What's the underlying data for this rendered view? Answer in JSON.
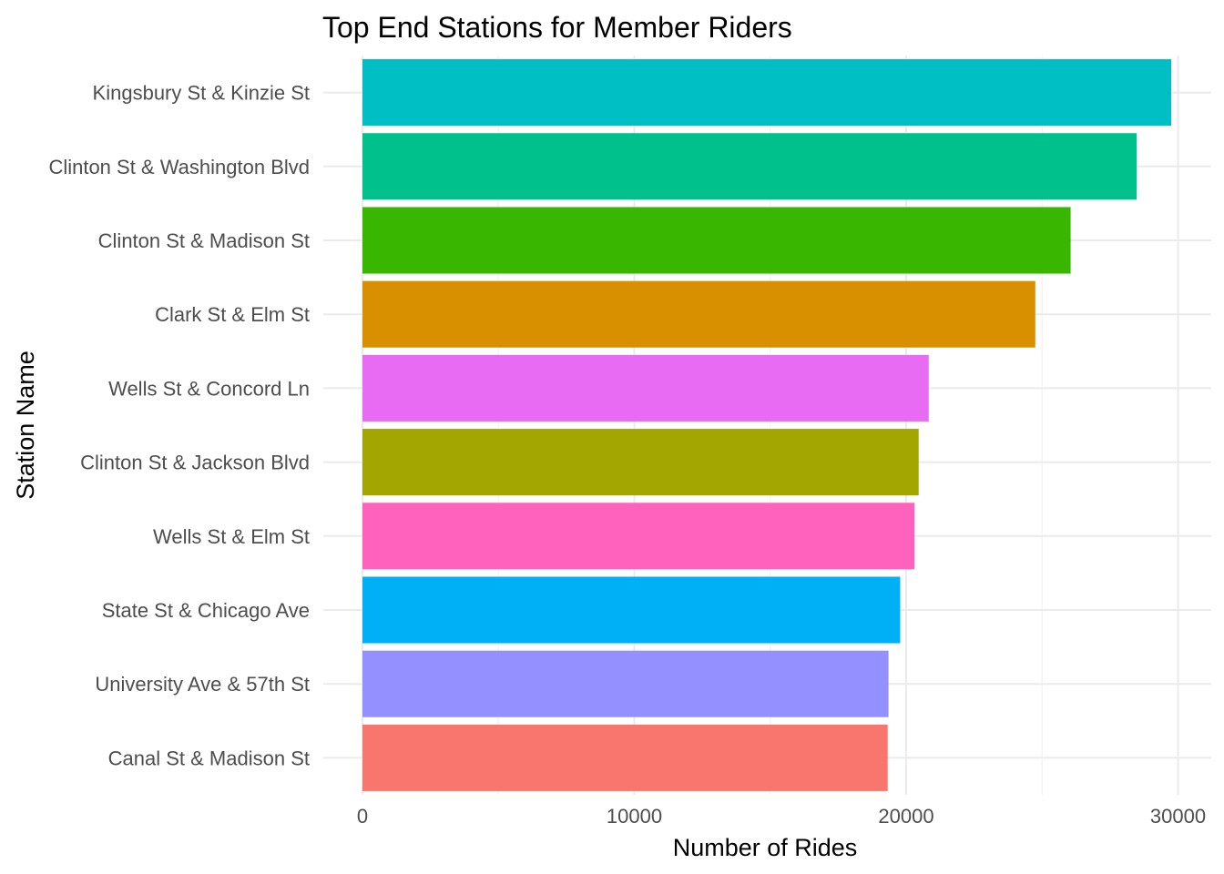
{
  "chart_data": {
    "type": "bar",
    "orientation": "horizontal",
    "title": "Top End Stations for Member Riders",
    "xlabel": "Number of Rides",
    "ylabel": "Station Name",
    "xlim": [
      0,
      31000
    ],
    "xticks": [
      0,
      10000,
      20000,
      30000
    ],
    "grid": true,
    "legend": "none",
    "categories": [
      "Kingsbury St & Kinzie St",
      "Clinton St & Washington Blvd",
      "Clinton St & Madison St",
      "Clark St & Elm St",
      "Wells St & Concord Ln",
      "Clinton St & Jackson Blvd",
      "Wells St & Elm St",
      "State St & Chicago Ave",
      "University Ave & 57th St",
      "Canal St & Madison St"
    ],
    "values": [
      29750,
      28480,
      26050,
      24750,
      20830,
      20460,
      20310,
      19780,
      19350,
      19320
    ],
    "colors": [
      "#00BFC4",
      "#00C08B",
      "#39B600",
      "#D89000",
      "#E76BF3",
      "#A3A500",
      "#FF62BC",
      "#00B0F6",
      "#9590FF",
      "#F8766D"
    ]
  }
}
